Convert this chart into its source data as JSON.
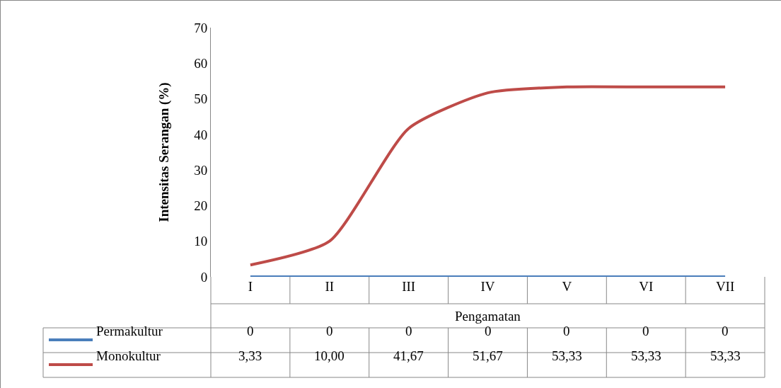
{
  "chart_data": {
    "type": "line",
    "xlabel": "Pengamatan",
    "ylabel": "Intensitas Serangan (%)",
    "categories": [
      "I",
      "II",
      "III",
      "IV",
      "V",
      "VI",
      "VII"
    ],
    "series": [
      {
        "name": "Permakultur",
        "color": "#4a7ebb",
        "values": [
          0,
          0,
          0,
          0,
          0,
          0,
          0
        ],
        "value_labels": [
          "0",
          "0",
          "0",
          "0",
          "0",
          "0",
          "0"
        ]
      },
      {
        "name": "Monokultur",
        "color": "#be4b48",
        "values": [
          3.33,
          10,
          41.67,
          51.67,
          53.33,
          53.33,
          53.33
        ],
        "value_labels": [
          "3,33",
          "10,00",
          "41,67",
          "51,67",
          "53,33",
          "53,33",
          "53,33"
        ]
      }
    ],
    "ylim": [
      0,
      70
    ],
    "yticks": [
      0,
      10,
      20,
      30,
      40,
      50,
      60,
      70
    ],
    "grid": false,
    "legend": "bottom left",
    "marker": "none",
    "line_style": "solid"
  }
}
